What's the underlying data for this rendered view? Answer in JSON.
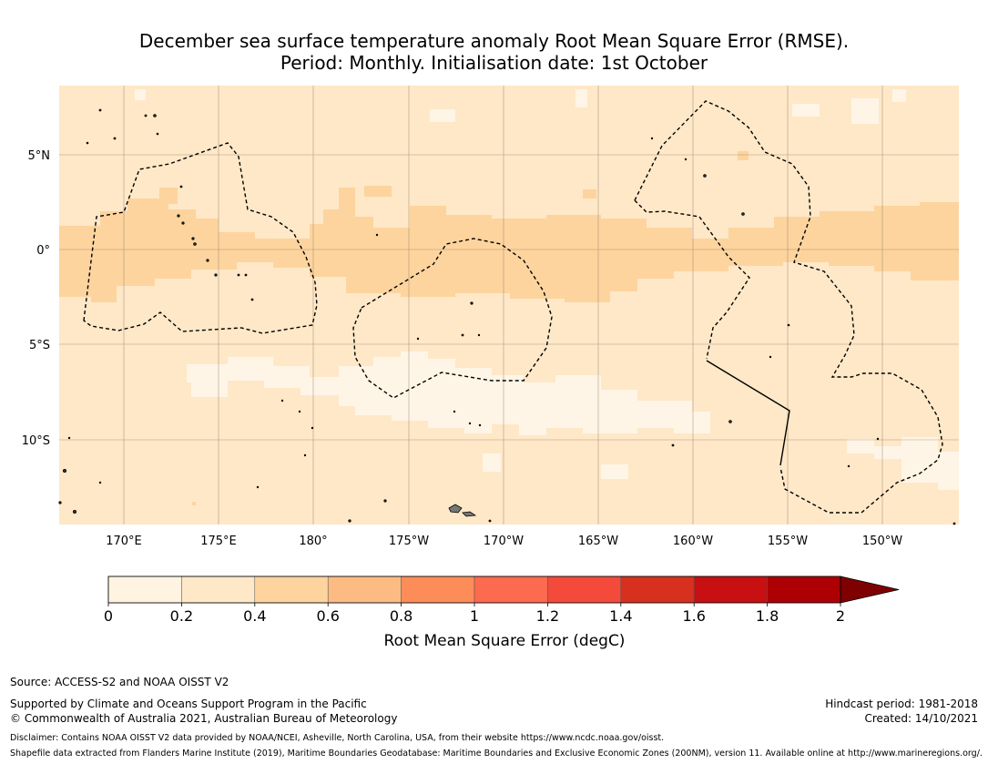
{
  "title": {
    "line1": "December sea surface temperature anomaly Root Mean Square Error (RMSE).",
    "line2": "Period: Monthly. Initialisation date: 1st October"
  },
  "map": {
    "lat_labels": [
      "5°N",
      "0°",
      "5°S",
      "10°S"
    ],
    "lon_labels": [
      "170°E",
      "175°E",
      "180°",
      "175°W",
      "170°W",
      "165°W",
      "160°W",
      "155°W",
      "150°W"
    ],
    "colors": {
      "background": "#fee8c8",
      "band": "#fdd49e",
      "light": "#fff5e6",
      "coast": "#000000",
      "grid": "#8c7a66"
    }
  },
  "chart_data": {
    "type": "heatmap",
    "title": "December sea surface temperature anomaly Root Mean Square Error (RMSE).",
    "variable": "Root Mean Square Error (degC)",
    "color_bins": [
      {
        "min": 0.0,
        "max": 0.2,
        "color": "#fff3e1"
      },
      {
        "min": 0.2,
        "max": 0.4,
        "color": "#fee8c8"
      },
      {
        "min": 0.4,
        "max": 0.6,
        "color": "#fdd49e"
      },
      {
        "min": 0.6,
        "max": 0.8,
        "color": "#fdbb84"
      },
      {
        "min": 0.8,
        "max": 1.0,
        "color": "#fc8d59"
      },
      {
        "min": 1.0,
        "max": 1.2,
        "color": "#fc6a4f"
      },
      {
        "min": 1.2,
        "max": 1.4,
        "color": "#f44a3c"
      },
      {
        "min": 1.4,
        "max": 1.6,
        "color": "#d7301f"
      },
      {
        "min": 1.6,
        "max": 1.8,
        "color": "#c80f12"
      },
      {
        "min": 1.8,
        "max": 2.0,
        "color": "#ac0004"
      }
    ],
    "extend_color": "#7f0000",
    "colorbar_ticks": [
      "0",
      "0.2",
      "0.4",
      "0.6",
      "0.8",
      "1",
      "1.2",
      "1.4",
      "1.6",
      "1.8",
      "2"
    ],
    "colorbar_label": "Root Mean Square Error (degC)",
    "lat_range": [
      -14.0,
      8.0
    ],
    "lon_range": [
      166.5,
      -145.5
    ],
    "observed_range_degC": [
      0.0,
      0.6
    ]
  },
  "footer": {
    "source": "Source: ACCESS-S2 and NOAA OISST V2",
    "supported": "Supported by Climate and Oceans Support Program in the Pacific",
    "copyright": "© Commonwealth of Australia 2021, Australian Bureau of Meteorology",
    "hindcast": "Hindcast period: 1981-2018",
    "created": "Created: 14/10/2021",
    "disclaimer": "Disclaimer: Contains NOAA OISST V2 data provided by NOAA/NCEI, Asheville, North Carolina, USA, from their website https://www.ncdc.noaa.gov/oisst.",
    "shapefile": "Shapefile data extracted from Flanders Marine Institute (2019), Maritime Boundaries Geodatabase: Maritime Boundaries and Exclusive Economic Zones (200NM), version 11. Available online at http://www.marineregions.org/."
  }
}
